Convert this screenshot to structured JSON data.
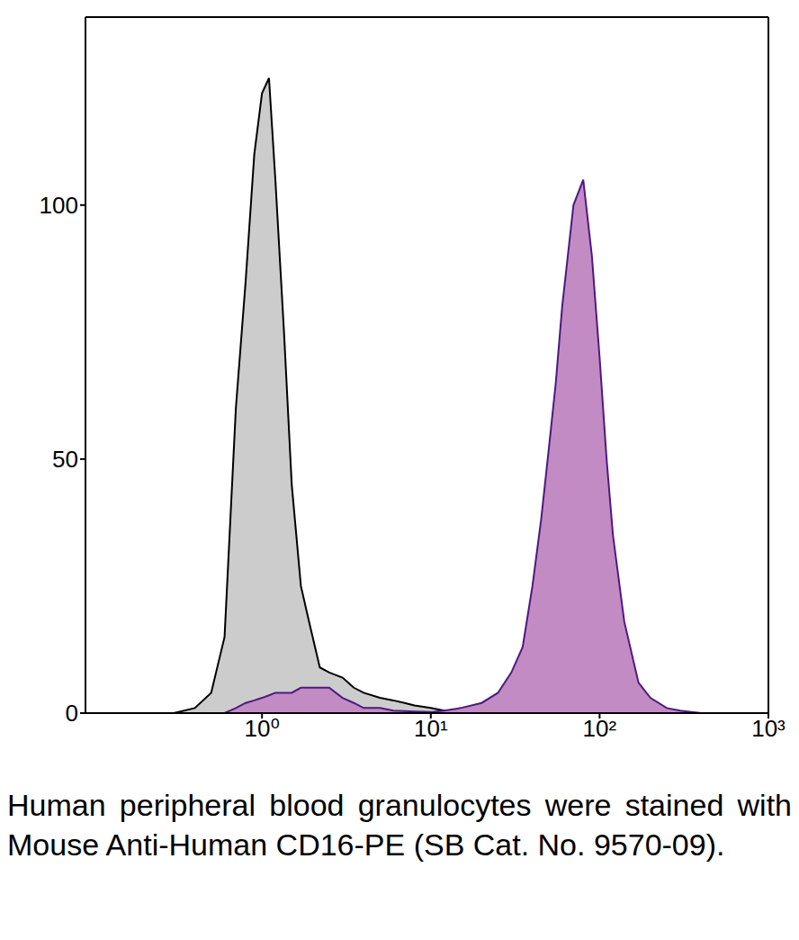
{
  "chart_data": {
    "type": "area",
    "log": "x",
    "caption": "Human peripheral blood granulocytes were stained with Mouse Anti-Human CD16-PE (SB Cat. No. 9570-09).",
    "x": [
      0.3,
      0.4,
      0.5,
      0.6,
      0.7,
      0.8,
      0.9,
      1.0,
      1.1,
      1.2,
      1.35,
      1.5,
      1.7,
      1.9,
      2.2,
      2.5,
      3,
      3.5,
      4,
      5,
      6,
      7,
      8,
      10,
      12,
      15,
      20,
      25,
      30,
      35,
      40,
      45,
      50,
      55,
      60,
      70,
      80,
      90,
      100,
      110,
      120,
      140,
      170,
      200,
      250,
      300,
      400
    ],
    "series": [
      {
        "color": "#cccccc",
        "values": [
          0,
          1,
          4,
          15,
          60,
          85,
          110,
          122,
          125,
          105,
          75,
          45,
          25,
          18,
          9,
          8,
          7,
          5,
          4,
          3,
          2.5,
          2,
          1.5,
          1,
          0.5,
          0.2,
          0,
          0,
          0,
          0,
          0,
          0,
          0,
          0,
          0,
          0,
          0,
          0,
          0,
          0,
          0,
          0,
          0,
          0,
          0,
          0,
          0
        ]
      },
      {
        "color": "#c38bc3",
        "values": [
          0,
          0,
          0,
          0,
          1,
          2,
          2.5,
          3,
          3.5,
          4,
          4,
          4,
          5,
          5,
          5,
          5,
          3,
          2,
          1,
          1,
          0.5,
          0.4,
          0.3,
          0.2,
          0.5,
          1,
          2,
          4,
          8,
          13,
          25,
          38,
          52,
          65,
          80,
          100,
          105,
          90,
          70,
          50,
          35,
          18,
          6,
          3,
          1,
          0.5,
          0
        ]
      }
    ],
    "xlim": [
      0.09,
      1000
    ],
    "ylim": [
      0,
      137
    ],
    "xticks": [
      {
        "value": 1,
        "label": "10⁰"
      },
      {
        "value": 10,
        "label": "10¹"
      },
      {
        "value": 100,
        "label": "10²"
      },
      {
        "value": 1000,
        "label": "10³"
      }
    ],
    "yticks": [
      0,
      50,
      100
    ]
  }
}
